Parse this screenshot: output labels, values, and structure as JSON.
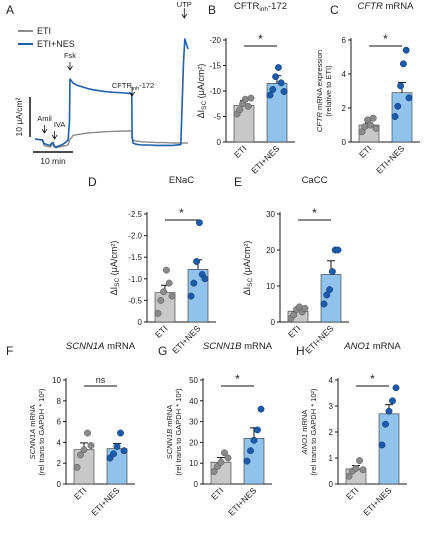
{
  "figure": {
    "background": "#ffffff"
  },
  "colors": {
    "eti": "#c8c8c8",
    "eti_nes": "#90c3eb",
    "eti_dot": "#8a8a8a",
    "nes_dot": "#1e5aa8",
    "trace_eti": "#8c8c8c",
    "trace_nes": "#1f5fad",
    "axis": "#1a1a1a"
  },
  "chart_data": [
    {
      "id": "A",
      "panel_letter": "A",
      "type": "line",
      "legend": [
        "ETI",
        "ETI+NES"
      ],
      "legend_position": "top-left",
      "scale_bar_y": "10 μA/cm²",
      "scale_bar_x": "10 min",
      "annotations": [
        "Amil",
        "IVA",
        "Fsk",
        "CFTR",
        "inh",
        "-172",
        "UTP"
      ],
      "series": [
        {
          "name": "ETI",
          "x": [
            0,
            2,
            2.8,
            3.4,
            4.2,
            5,
            5.8,
            6.2,
            6.8,
            7.3,
            8,
            9,
            10,
            11,
            12,
            12.5,
            13,
            13.2,
            13.8,
            14.3,
            16,
            18,
            20,
            22,
            24,
            26,
            29,
            34,
            36.5,
            36.6,
            37,
            38,
            40,
            43,
            46,
            49,
            52,
            55,
            57.7
          ],
          "y": [
            0,
            -0.2,
            -0.3,
            -1.6,
            -1.8,
            -1.9,
            -2.0,
            -1.6,
            -1.4,
            -2.1,
            -2.2,
            -2.0,
            -1.9,
            -1.7,
            -1.6,
            -1.4,
            -0.4,
            0.0,
            0.3,
            0.9,
            1.1,
            1.3,
            1.5,
            1.6,
            1.7,
            1.8,
            1.9,
            2.0,
            2.0,
            0.0,
            -0.3,
            -0.5,
            -0.7,
            -0.8,
            -0.9,
            -0.9,
            -1.0,
            -1.0,
            -1.0
          ]
        },
        {
          "name": "ETI+NES",
          "x": [
            0,
            2,
            2.8,
            3.4,
            4.2,
            5,
            5.8,
            6.2,
            6.8,
            7.3,
            8,
            9,
            10,
            11,
            12,
            12.5,
            13,
            13.2,
            13.8,
            14.3,
            16,
            18,
            20,
            22,
            24,
            26,
            29,
            34,
            36.5,
            36.6,
            37,
            38,
            40,
            43,
            46,
            49,
            52,
            55,
            56,
            56.5,
            57.2,
            57.7
          ],
          "y": [
            0,
            -0.2,
            -0.2,
            -1.1,
            -1.3,
            -1.5,
            -1.6,
            -1.1,
            -0.9,
            -1.8,
            -2.0,
            -1.7,
            -1.5,
            -1.1,
            -0.6,
            -0.3,
            4.5,
            15.0,
            14.5,
            14.0,
            13.4,
            13.0,
            12.6,
            12.3,
            12.1,
            11.9,
            11.7,
            11.5,
            11.3,
            0.5,
            -1.0,
            -1.3,
            -1.5,
            -1.5,
            -1.6,
            -1.6,
            -1.6,
            -1.4,
            19.0,
            25.0,
            23.5,
            22.5
          ]
        }
      ]
    },
    {
      "id": "B",
      "panel_letter": "B",
      "type": "bar",
      "title": "CFTR",
      "title_sub": "inh",
      "title_suffix": "-172",
      "ylabel": "ΔI",
      "ylabel_sub": "SC",
      "ylabel_unit": " (μA/cm²)",
      "categories": [
        "ETI",
        "ETI+NES"
      ],
      "ylim": [
        0,
        -20
      ],
      "yticks": [
        0,
        -5,
        -10,
        -15,
        -20
      ],
      "tick_labels": [
        "0",
        "-5",
        "-10",
        "-15",
        "-20"
      ],
      "significance": "*",
      "series": [
        {
          "name": "ETI",
          "mean": -7.2,
          "sem": 0.9,
          "points": [
            -5.5,
            -6.3,
            -7.5,
            -8.4,
            -7.0,
            -8.6
          ]
        },
        {
          "name": "ETI+NES",
          "mean": -11.5,
          "sem": 1.5,
          "points": [
            -9.2,
            -10.3,
            -12.8,
            -14.6,
            -11.6,
            -9.9
          ]
        }
      ]
    },
    {
      "id": "C",
      "panel_letter": "C",
      "type": "bar",
      "title": "CFTR",
      "title_suffix": " mRNA",
      "title_italic": true,
      "ylabel": "CFTR",
      "ylabel_suffix": " mRNA expression",
      "ylabel_line2": "(relative to ETI)",
      "categories": [
        "ETI",
        "ETI+NES"
      ],
      "ylim": [
        0,
        6
      ],
      "yticks": [
        0,
        2,
        4,
        6
      ],
      "tick_labels": [
        "0",
        "2",
        "4",
        "6"
      ],
      "significance": "*",
      "series": [
        {
          "name": "ETI",
          "mean": 1.0,
          "sem": 0.12,
          "points": [
            0.6,
            0.9,
            1.3,
            1.0,
            1.4,
            0.8
          ]
        },
        {
          "name": "ETI+NES",
          "mean": 2.9,
          "sem": 0.6,
          "points": [
            1.5,
            2.1,
            3.3,
            4.6,
            5.4,
            2.6
          ]
        }
      ]
    },
    {
      "id": "D",
      "panel_letter": "D",
      "type": "bar",
      "title": "ENaC",
      "ylabel": "ΔI",
      "ylabel_sub": "SC",
      "ylabel_unit": " (μA/cm²)",
      "categories": [
        "ETI",
        "ETI+NES"
      ],
      "ylim": [
        0,
        -2.5
      ],
      "yticks": [
        0,
        -0.5,
        -1.0,
        -1.5,
        -2.0,
        -2.5
      ],
      "tick_labels": [
        "0",
        "-0.5",
        "-1.0",
        "-1.5",
        "-2.0",
        "-2.5"
      ],
      "significance": "*",
      "series": [
        {
          "name": "ETI",
          "mean": -0.68,
          "sem": 0.17,
          "points": [
            -0.2,
            -0.5,
            -0.7,
            -1.2,
            -0.9,
            -0.6
          ]
        },
        {
          "name": "ETI+NES",
          "mean": -1.22,
          "sem": 0.22,
          "points": [
            -0.6,
            -0.9,
            -1.4,
            -2.3,
            -1.1,
            -1.0
          ]
        }
      ]
    },
    {
      "id": "E",
      "panel_letter": "E",
      "type": "bar",
      "title": "CaCC",
      "ylabel": "ΔI",
      "ylabel_sub": "SC",
      "ylabel_unit": " (μA/cm²)",
      "categories": [
        "ETI",
        "ETI+NES"
      ],
      "ylim": [
        0,
        30
      ],
      "yticks": [
        0,
        10,
        20,
        30
      ],
      "tick_labels": [
        "0",
        "10",
        "20",
        "30"
      ],
      "significance": "*",
      "series": [
        {
          "name": "ETI",
          "mean": 3.0,
          "sem": 0.7,
          "points": [
            1.0,
            2.0,
            3.5,
            4.2,
            2.8,
            3.8
          ]
        },
        {
          "name": "ETI+NES",
          "mean": 13.2,
          "sem": 3.8,
          "points": [
            5.0,
            7.5,
            9.0,
            14.0,
            20.0,
            20.0
          ]
        }
      ]
    },
    {
      "id": "F",
      "panel_letter": "F",
      "type": "bar",
      "title": "SCNN1A",
      "title_suffix": " mRNA",
      "title_italic": true,
      "ylabel": "SCNN1A",
      "ylabel_suffix": " mRNA",
      "ylabel_line2": "(rel trans to GAPDH * 10²)",
      "categories": [
        "ETI",
        "ETI+NES"
      ],
      "ylim": [
        0,
        10
      ],
      "yticks": [
        0,
        2,
        4,
        6,
        8,
        10
      ],
      "tick_labels": [
        "0",
        "2",
        "4",
        "6",
        "8",
        "10"
      ],
      "significance": "ns",
      "series": [
        {
          "name": "ETI",
          "mean": 3.3,
          "sem": 0.65,
          "points": [
            1.6,
            2.8,
            3.3,
            4.9,
            3.7
          ]
        },
        {
          "name": "ETI+NES",
          "mean": 3.4,
          "sem": 0.5,
          "points": [
            2.5,
            2.9,
            3.6,
            4.9,
            3.2
          ]
        }
      ]
    },
    {
      "id": "G",
      "panel_letter": "G",
      "type": "bar",
      "title": "SCNN1B",
      "title_suffix": " mRNA",
      "title_italic": true,
      "ylabel": "SCNN1B",
      "ylabel_suffix": " mRNA",
      "ylabel_line2": "(rel trans to GAPDH * 10²)",
      "categories": [
        "ETI",
        "ETI+NES"
      ],
      "ylim": [
        0,
        50
      ],
      "yticks": [
        0,
        10,
        20,
        30,
        40,
        50
      ],
      "tick_labels": [
        "0",
        "10",
        "20",
        "30",
        "40",
        "50"
      ],
      "significance": "*",
      "series": [
        {
          "name": "ETI",
          "mean": 10.5,
          "sem": 2.2,
          "points": [
            6.0,
            8.5,
            10.5,
            15.0,
            12.5
          ]
        },
        {
          "name": "ETI+NES",
          "mean": 22.0,
          "sem": 5.0,
          "points": [
            11.0,
            16.0,
            21.0,
            26.0,
            36.0
          ]
        }
      ]
    },
    {
      "id": "H",
      "panel_letter": "H",
      "type": "bar",
      "title": "ANO1",
      "title_suffix": " mRNA",
      "title_italic": true,
      "ylabel": "ANO1",
      "ylabel_suffix": " mRNA",
      "ylabel_line2": "(rel trans to GAPDH * 10²)",
      "categories": [
        "ETI",
        "ETI+NES"
      ],
      "ylim": [
        0,
        4
      ],
      "yticks": [
        0,
        1,
        2,
        3,
        4
      ],
      "tick_labels": [
        "0",
        "1",
        "2",
        "3",
        "4"
      ],
      "significance": "*",
      "series": [
        {
          "name": "ETI",
          "mean": 0.58,
          "sem": 0.13,
          "points": [
            0.3,
            0.5,
            0.6,
            0.9,
            0.55
          ]
        },
        {
          "name": "ETI+NES",
          "mean": 2.7,
          "sem": 0.35,
          "points": [
            1.5,
            2.3,
            2.8,
            3.2,
            3.7
          ]
        }
      ]
    }
  ]
}
